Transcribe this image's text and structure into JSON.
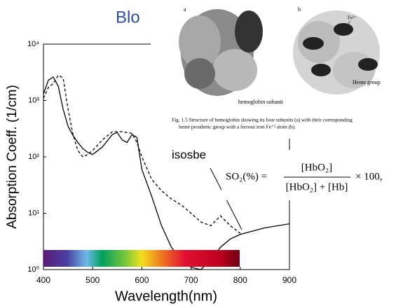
{
  "slide_title": "Blo",
  "chart_data": {
    "type": "line",
    "x_label": "Wavelength(nm)",
    "y_label": "Absorption Coeff. (1/cm)",
    "x": [
      400,
      410,
      420,
      430,
      440,
      450,
      460,
      470,
      480,
      490,
      500,
      520,
      540,
      550,
      560,
      570,
      580,
      590,
      600,
      620,
      640,
      660,
      680,
      700,
      720,
      740,
      760,
      780,
      800,
      850,
      900
    ],
    "series": [
      {
        "color": "#000000",
        "dash": false,
        "values": [
          1300,
          2300,
          2600,
          1800,
          700,
          350,
          240,
          180,
          140,
          120,
          110,
          150,
          250,
          270,
          200,
          180,
          250,
          220,
          60,
          20,
          6,
          2.5,
          1.5,
          1.1,
          1,
          1.5,
          2.5,
          3.5,
          4.2,
          5.5,
          6.5
        ]
      },
      {
        "color": "#000000",
        "dash": true,
        "values": [
          1100,
          1700,
          2000,
          2800,
          2500,
          700,
          250,
          130,
          100,
          110,
          130,
          200,
          280,
          280,
          280,
          270,
          260,
          180,
          100,
          40,
          25,
          18,
          14,
          10,
          7,
          6,
          9,
          6,
          4.4,
          null,
          null
        ]
      }
    ],
    "xlim": [
      400,
      900
    ],
    "xticks": [
      400,
      500,
      600,
      700,
      800,
      900
    ],
    "ylim": [
      1,
      10000
    ],
    "log_y": true,
    "yticks": [
      {
        "value": 1,
        "label": "10⁰"
      },
      {
        "value": 10,
        "label": "10¹"
      },
      {
        "value": 100,
        "label": "10²"
      },
      {
        "value": 1000,
        "label": "10³"
      },
      {
        "value": 10000,
        "label": "10⁴"
      }
    ]
  },
  "annotation": "isosbe",
  "figure": {
    "panel_a": "a",
    "panel_b": "b",
    "iron": "Fe²⁺",
    "subunit_label": "hemoglobin subunit",
    "heme_label": "Heme group",
    "caption": [
      "Fig. 1.5   Structure of hemoglobin showing its four subunits (a) with their corresponding",
      "heme prosthetic group with a ferrous iron Fe⁺² atom (b)."
    ]
  },
  "formula": {
    "lhs": "SO₂(%) =",
    "numerator": "[HbO₂]",
    "denominator": "[HbO₂] + [Hb]",
    "rhs": "× 100,"
  }
}
